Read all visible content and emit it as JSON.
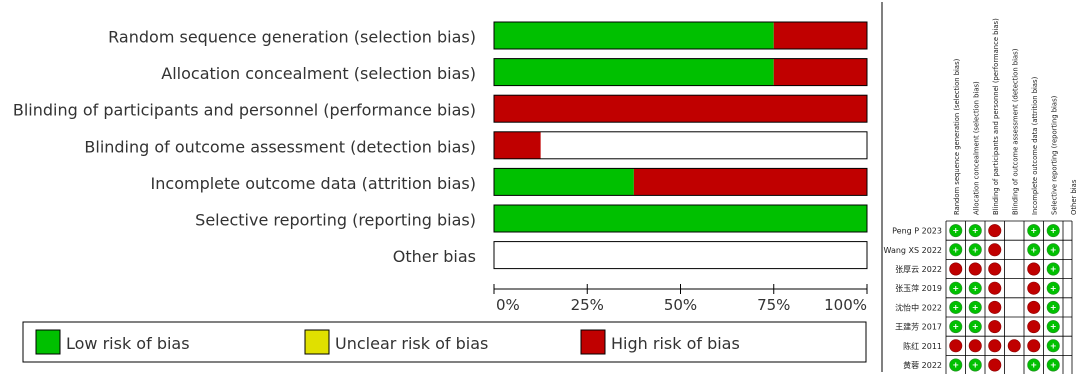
{
  "chart_data": [
    {
      "type": "bar",
      "stacked": true,
      "orientation": "horizontal",
      "categories": [
        "Random sequence generation (selection bias)",
        "Allocation concealment (selection bias)",
        "Blinding of participants and personnel (performance bias)",
        "Blinding of outcome assessment (detection bias)",
        "Incomplete outcome data (attrition bias)",
        "Selective reporting (reporting bias)",
        "Other bias"
      ],
      "series": [
        {
          "name": "Low risk of bias",
          "values": [
            75,
            75,
            0,
            0,
            37.5,
            100,
            0
          ]
        },
        {
          "name": "Unclear risk of bias",
          "values": [
            0,
            0,
            0,
            0,
            0,
            0,
            0
          ]
        },
        {
          "name": "High risk of bias",
          "values": [
            25,
            25,
            100,
            12.5,
            62.5,
            0,
            0
          ]
        }
      ],
      "xticks": [
        "0%",
        "25%",
        "50%",
        "75%",
        "100%"
      ],
      "xlim": [
        0,
        100
      ],
      "legend_position": "bottom",
      "colors": {
        "low": "#00c000",
        "unclear": "#e0e000",
        "high": "#c00000"
      }
    },
    {
      "type": "table",
      "columns": [
        "Random sequence generation (selection bias)",
        "Allocation concealment (selection bias)",
        "Blinding of participants and personnel (performance bias)",
        "Blinding of outcome assessment (detection bias)",
        "Incomplete outcome data (attrition bias)",
        "Selective reporting (reporting bias)",
        "Other bias"
      ],
      "rows": [
        {
          "study": "Peng P 2023",
          "ratings": [
            "+",
            "+",
            "-",
            "",
            "+",
            "+",
            ""
          ]
        },
        {
          "study": "Wang XS 2022",
          "ratings": [
            "+",
            "+",
            "-",
            "",
            "+",
            "+",
            ""
          ]
        },
        {
          "study": "张厚云 2022",
          "ratings": [
            "-",
            "-",
            "-",
            "",
            "-",
            "+",
            ""
          ]
        },
        {
          "study": "张玉萍 2019",
          "ratings": [
            "+",
            "+",
            "-",
            "",
            "-",
            "+",
            ""
          ]
        },
        {
          "study": "沈怡中 2022",
          "ratings": [
            "+",
            "+",
            "-",
            "",
            "-",
            "+",
            ""
          ]
        },
        {
          "study": "王建芳 2017",
          "ratings": [
            "+",
            "+",
            "-",
            "",
            "-",
            "+",
            ""
          ]
        },
        {
          "study": "陈红 2011",
          "ratings": [
            "-",
            "-",
            "-",
            "-",
            "-",
            "+",
            ""
          ]
        },
        {
          "study": "黄蓉 2022",
          "ratings": [
            "+",
            "+",
            "-",
            "",
            "+",
            "+",
            ""
          ]
        }
      ]
    }
  ]
}
